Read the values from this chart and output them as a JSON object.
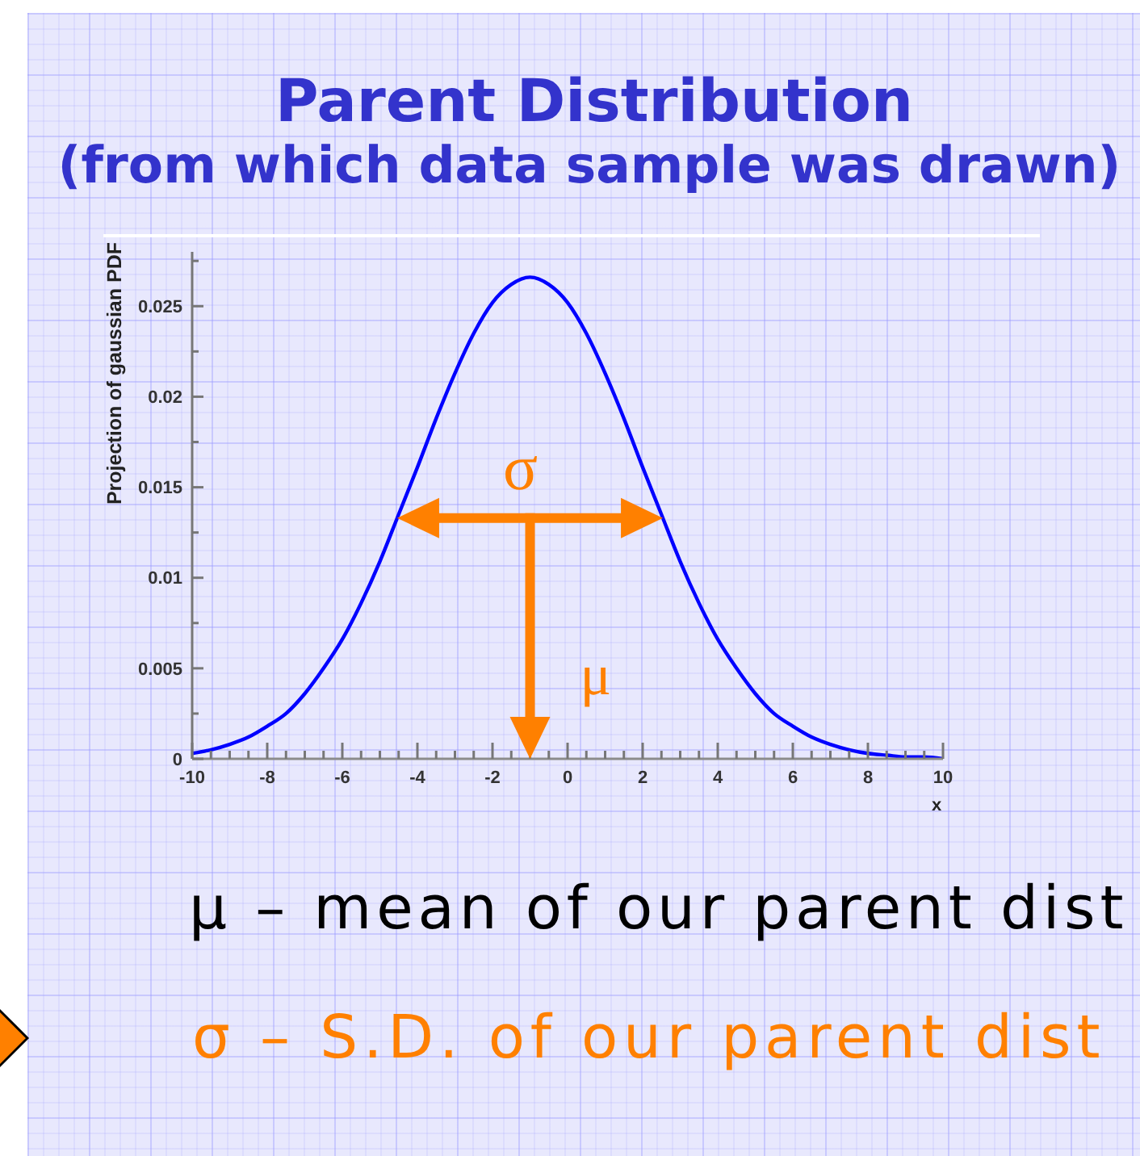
{
  "chart_data": {
    "type": "line",
    "title": "Parent Distribution",
    "subtitle": "(from which data sample was drawn)",
    "xlabel": "x",
    "ylabel": "Projection of gaussian PDF",
    "annotations": [
      "σ",
      "μ",
      "μ – mean of our parent dist",
      "σ – S.D. of our parent dist"
    ],
    "x": [
      -10,
      -9.5,
      -9,
      -8.5,
      -8,
      -7.5,
      -7,
      -6.5,
      -6,
      -5.5,
      -5,
      -4.5,
      -4,
      -3.5,
      -3,
      -2.5,
      -2,
      -1.5,
      -1,
      -0.5,
      0,
      0.5,
      1,
      1.5,
      2,
      2.5,
      3,
      3.5,
      4,
      4.5,
      5,
      5.5,
      6,
      6.5,
      7,
      7.5,
      8,
      8.5,
      9,
      9.5,
      10
    ],
    "series": [
      {
        "color": "#0000ff",
        "values": [
          0.0003,
          0.0005,
          0.0008,
          0.0012,
          0.0018,
          0.0025,
          0.0036,
          0.005,
          0.0066,
          0.0086,
          0.0109,
          0.0135,
          0.0161,
          0.0188,
          0.0213,
          0.0235,
          0.0252,
          0.0262,
          0.0266,
          0.0262,
          0.0252,
          0.0235,
          0.0213,
          0.0188,
          0.0161,
          0.0135,
          0.0109,
          0.0086,
          0.0066,
          0.005,
          0.0036,
          0.0025,
          0.0018,
          0.0012,
          0.0008,
          0.0005,
          0.0003,
          0.0002,
          0.0001,
          0.0001,
          0
        ]
      }
    ],
    "xlim": [
      -10,
      10
    ],
    "ylim": [
      0,
      0.028
    ],
    "xticks": [
      -10,
      {
        "value": -9.5,
        "label": null
      },
      {
        "value": -9,
        "label": null
      },
      {
        "value": -8.5,
        "label": null
      },
      -8,
      {
        "value": -7.5,
        "label": null
      },
      {
        "value": -7,
        "label": null
      },
      {
        "value": -6.5,
        "label": null
      },
      -6,
      {
        "value": -5.5,
        "label": null
      },
      {
        "value": -5,
        "label": null
      },
      {
        "value": -4.5,
        "label": null
      },
      -4,
      {
        "value": -3.5,
        "label": null
      },
      {
        "value": -3,
        "label": null
      },
      {
        "value": -2.5,
        "label": null
      },
      -2,
      {
        "value": -1.5,
        "label": null
      },
      {
        "value": -1,
        "label": null
      },
      {
        "value": -0.5,
        "label": null
      },
      0,
      {
        "value": 0.5,
        "label": null
      },
      {
        "value": 1,
        "label": null
      },
      {
        "value": 1.5,
        "label": null
      },
      2,
      {
        "value": 2.5,
        "label": null
      },
      {
        "value": 3,
        "label": null
      },
      {
        "value": 3.5,
        "label": null
      },
      4,
      {
        "value": 4.5,
        "label": null
      },
      {
        "value": 5,
        "label": null
      },
      {
        "value": 5.5,
        "label": null
      },
      6,
      {
        "value": 6.5,
        "label": null
      },
      {
        "value": 7,
        "label": null
      },
      {
        "value": 7.5,
        "label": null
      },
      8,
      {
        "value": 8.5,
        "label": null
      },
      {
        "value": 9,
        "label": null
      },
      {
        "value": 9.5,
        "label": null
      },
      10
    ],
    "yticks": [
      0,
      {
        "value": 0.0025,
        "label": null
      },
      0.005,
      {
        "value": 0.0075,
        "label": null
      },
      0.01,
      {
        "value": 0.0125,
        "label": null
      },
      0.015,
      {
        "value": 0.0175,
        "label": null
      },
      0.02,
      {
        "value": 0.0225,
        "label": null
      },
      0.025,
      {
        "value": 0.0275,
        "label": null
      }
    ],
    "marker": "none",
    "line_style": "solid"
  }
}
